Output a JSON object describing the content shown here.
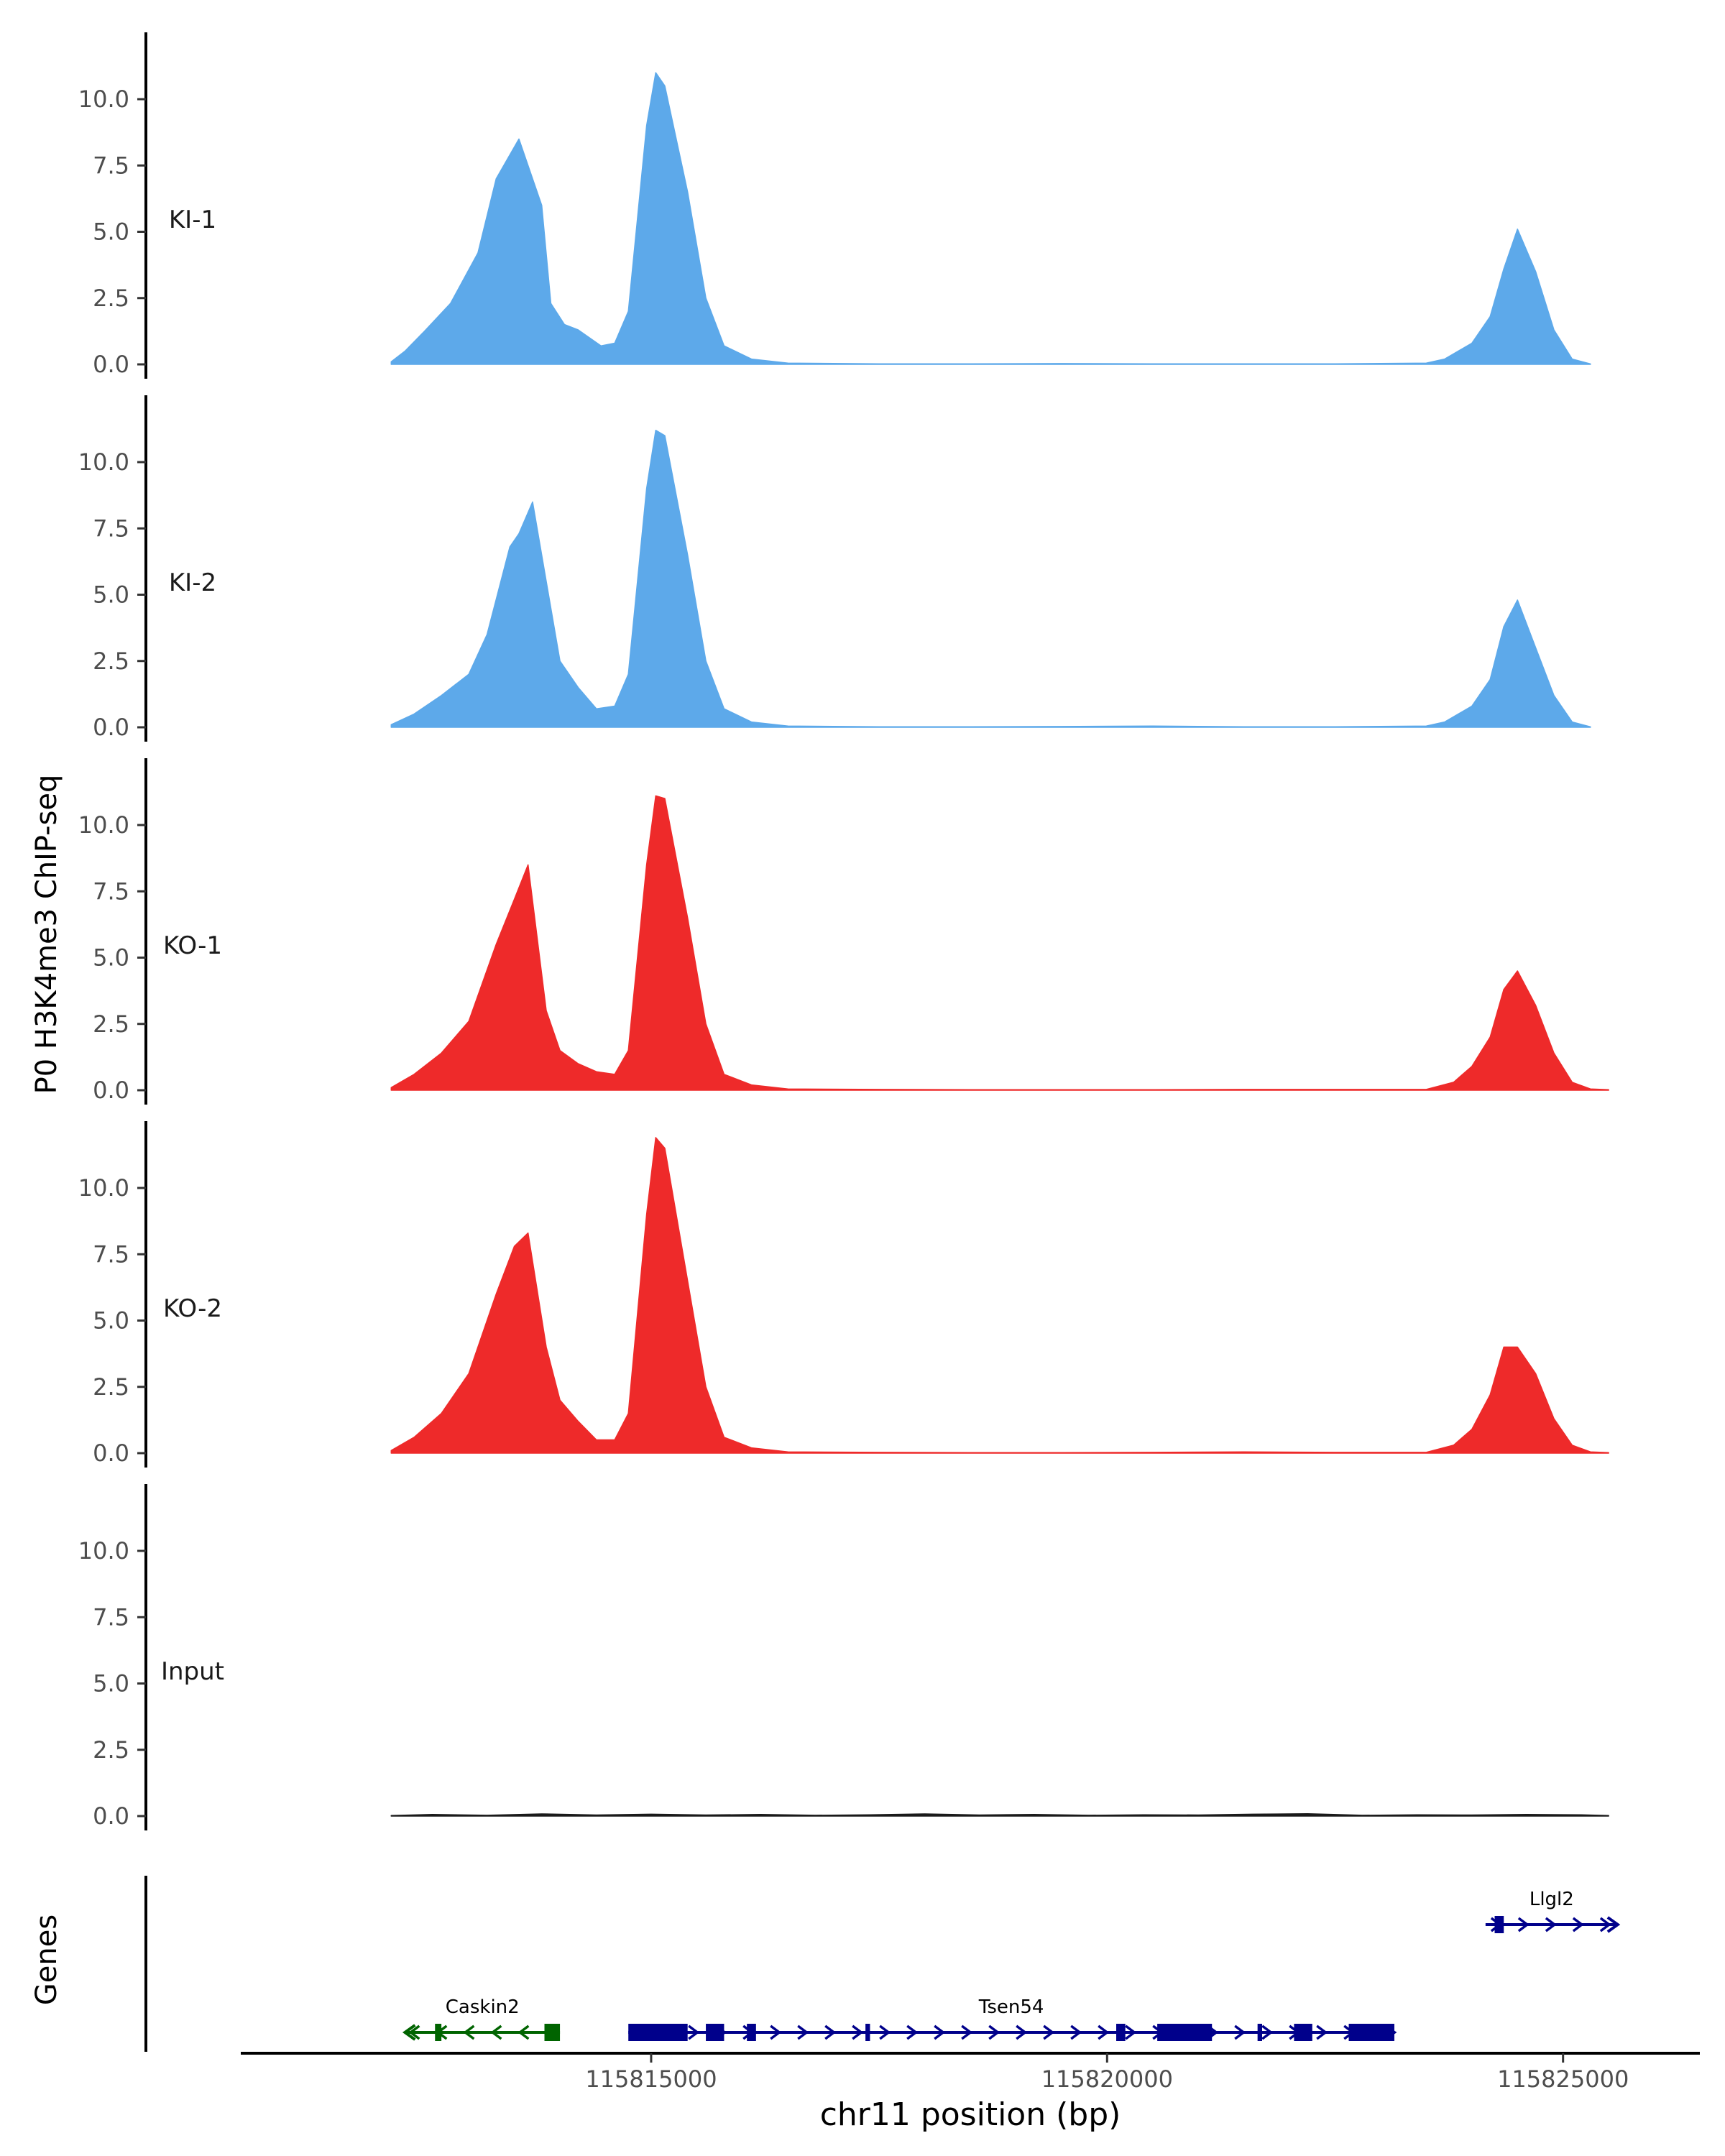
{
  "chart_data": {
    "type": "area",
    "ylabel": "P0 H3K4me3 ChIP-seq",
    "xlabel": "chr11 position (bp)",
    "genes_label": "Genes",
    "xlim": [
      115810500,
      115826500
    ],
    "ylim": [
      0,
      12.5
    ],
    "y_ticks": [
      0,
      2.5,
      5,
      7.5,
      10
    ],
    "y_tick_labels": [
      "0.0",
      "2.5",
      "5.0",
      "7.5",
      "10.0"
    ],
    "x_ticks": [
      115815000,
      115820000,
      115825000
    ],
    "x_tick_labels": [
      "115815000",
      "115820000",
      "115825000"
    ],
    "colors": {
      "KI": "#5DA9EA",
      "KO": "#EE2A2A",
      "Input": "#1a1a1a",
      "gene_minus": "#006400",
      "gene_plus": "#00008B"
    },
    "tracks": [
      {
        "name": "KI-1",
        "color": "#5DA9EA",
        "x": [
          115812150,
          115812300,
          115812500,
          115812800,
          115813100,
          115813300,
          115813550,
          115813800,
          115813900,
          115814050,
          115814200,
          115814450,
          115814600,
          115814750,
          115814950,
          115815050,
          115815150,
          115815400,
          115815600,
          115815800,
          115816100,
          115816500,
          115817500,
          115818500,
          115819500,
          115820500,
          115821500,
          115822500,
          115823500,
          115823700,
          115824000,
          115824200,
          115824350,
          115824500,
          115824700,
          115824900,
          115825100,
          115825300
        ],
        "y": [
          0.1,
          0.5,
          1.2,
          2.3,
          4.2,
          7.0,
          8.5,
          6.0,
          2.3,
          1.5,
          1.3,
          0.7,
          0.8,
          2.0,
          9.0,
          11.0,
          10.5,
          6.5,
          2.5,
          0.7,
          0.2,
          0.05,
          0.02,
          0.02,
          0.03,
          0.02,
          0.02,
          0.02,
          0.05,
          0.2,
          0.8,
          1.8,
          3.6,
          5.1,
          3.5,
          1.3,
          0.2,
          0.02
        ]
      },
      {
        "name": "KI-2",
        "color": "#5DA9EA",
        "x": [
          115812150,
          115812400,
          115812700,
          115813000,
          115813200,
          115813450,
          115813550,
          115813700,
          115813850,
          115814000,
          115814200,
          115814400,
          115814600,
          115814750,
          115814950,
          115815050,
          115815150,
          115815400,
          115815600,
          115815800,
          115816100,
          115816500,
          115817500,
          115818500,
          115819500,
          115820500,
          115821500,
          115822500,
          115823500,
          115823700,
          115824000,
          115824200,
          115824350,
          115824500,
          115824700,
          115824900,
          115825100,
          115825300
        ],
        "y": [
          0.1,
          0.5,
          1.2,
          2.0,
          3.5,
          6.8,
          7.3,
          8.5,
          5.5,
          2.5,
          1.5,
          0.7,
          0.8,
          2.0,
          9.0,
          11.2,
          11.0,
          6.5,
          2.5,
          0.7,
          0.2,
          0.05,
          0.02,
          0.02,
          0.03,
          0.05,
          0.02,
          0.02,
          0.05,
          0.2,
          0.8,
          1.8,
          3.8,
          4.8,
          3.0,
          1.2,
          0.2,
          0.02
        ]
      },
      {
        "name": "KO-1",
        "color": "#EE2A2A",
        "x": [
          115812150,
          115812400,
          115812700,
          115813000,
          115813300,
          115813500,
          115813650,
          115813850,
          115814000,
          115814200,
          115814400,
          115814600,
          115814750,
          115814950,
          115815050,
          115815150,
          115815400,
          115815600,
          115815800,
          115816100,
          115816500,
          115817500,
          115818500,
          115819500,
          115820500,
          115821500,
          115822500,
          115823500,
          115823800,
          115824000,
          115824200,
          115824350,
          115824500,
          115824700,
          115824900,
          115825100,
          115825300,
          115825500
        ],
        "y": [
          0.1,
          0.6,
          1.4,
          2.6,
          5.5,
          7.2,
          8.5,
          3.0,
          1.5,
          1.0,
          0.7,
          0.6,
          1.5,
          8.5,
          11.1,
          11.0,
          6.5,
          2.5,
          0.6,
          0.2,
          0.05,
          0.03,
          0.02,
          0.02,
          0.02,
          0.03,
          0.03,
          0.03,
          0.3,
          0.9,
          2.0,
          3.8,
          4.5,
          3.2,
          1.4,
          0.3,
          0.05,
          0.02
        ]
      },
      {
        "name": "KO-2",
        "color": "#EE2A2A",
        "x": [
          115812150,
          115812400,
          115812700,
          115813000,
          115813300,
          115813500,
          115813650,
          115813850,
          115814000,
          115814200,
          115814400,
          115814600,
          115814750,
          115814950,
          115815050,
          115815150,
          115815400,
          115815600,
          115815800,
          115816100,
          115816500,
          115817500,
          115818500,
          115819500,
          115820500,
          115821500,
          115822500,
          115823500,
          115823800,
          115824000,
          115824200,
          115824350,
          115824500,
          115824700,
          115824900,
          115825100,
          115825300,
          115825500
        ],
        "y": [
          0.1,
          0.6,
          1.5,
          3.0,
          6.0,
          7.8,
          8.3,
          4.0,
          2.0,
          1.2,
          0.5,
          0.5,
          1.5,
          9.0,
          11.9,
          11.5,
          6.5,
          2.5,
          0.6,
          0.2,
          0.05,
          0.03,
          0.02,
          0.02,
          0.03,
          0.05,
          0.03,
          0.03,
          0.3,
          0.9,
          2.2,
          4.0,
          4.0,
          3.0,
          1.3,
          0.3,
          0.05,
          0.02
        ]
      },
      {
        "name": "Input",
        "color": "#1a1a1a",
        "x": [
          115812150,
          115812600,
          115813200,
          115813800,
          115814400,
          115815000,
          115815600,
          115816200,
          115816800,
          115817400,
          115818000,
          115818600,
          115819200,
          115819800,
          115820400,
          115821000,
          115821600,
          115822200,
          115822800,
          115823400,
          115824000,
          115824600,
          115825200,
          115825500
        ],
        "y": [
          0.02,
          0.06,
          0.03,
          0.08,
          0.04,
          0.07,
          0.04,
          0.06,
          0.03,
          0.05,
          0.08,
          0.04,
          0.06,
          0.03,
          0.05,
          0.04,
          0.07,
          0.09,
          0.03,
          0.05,
          0.04,
          0.06,
          0.05,
          0.02
        ]
      }
    ],
    "genes": [
      {
        "name": "Caskin2",
        "strand": "-",
        "color": "#006400",
        "start": 115812300,
        "end": 115814000,
        "exons": [
          [
            115812630,
            115812700
          ],
          [
            115813830,
            115814000
          ]
        ]
      },
      {
        "name": "Tsen54",
        "strand": "+",
        "color": "#00008B",
        "start": 115814750,
        "end": 115823150,
        "exons": [
          [
            115814750,
            115815400
          ],
          [
            115815600,
            115815800
          ],
          [
            115816050,
            115816150
          ],
          [
            115817350,
            115817400
          ],
          [
            115820100,
            115820200
          ],
          [
            115820550,
            115821150
          ],
          [
            115821650,
            115821700
          ],
          [
            115822050,
            115822250
          ],
          [
            115822650,
            115823150
          ]
        ]
      },
      {
        "name": "Llgl2",
        "strand": "+",
        "color": "#00008B",
        "start": 115824150,
        "end": 115825600,
        "exons": [
          [
            115824250,
            115824350
          ]
        ]
      }
    ]
  }
}
